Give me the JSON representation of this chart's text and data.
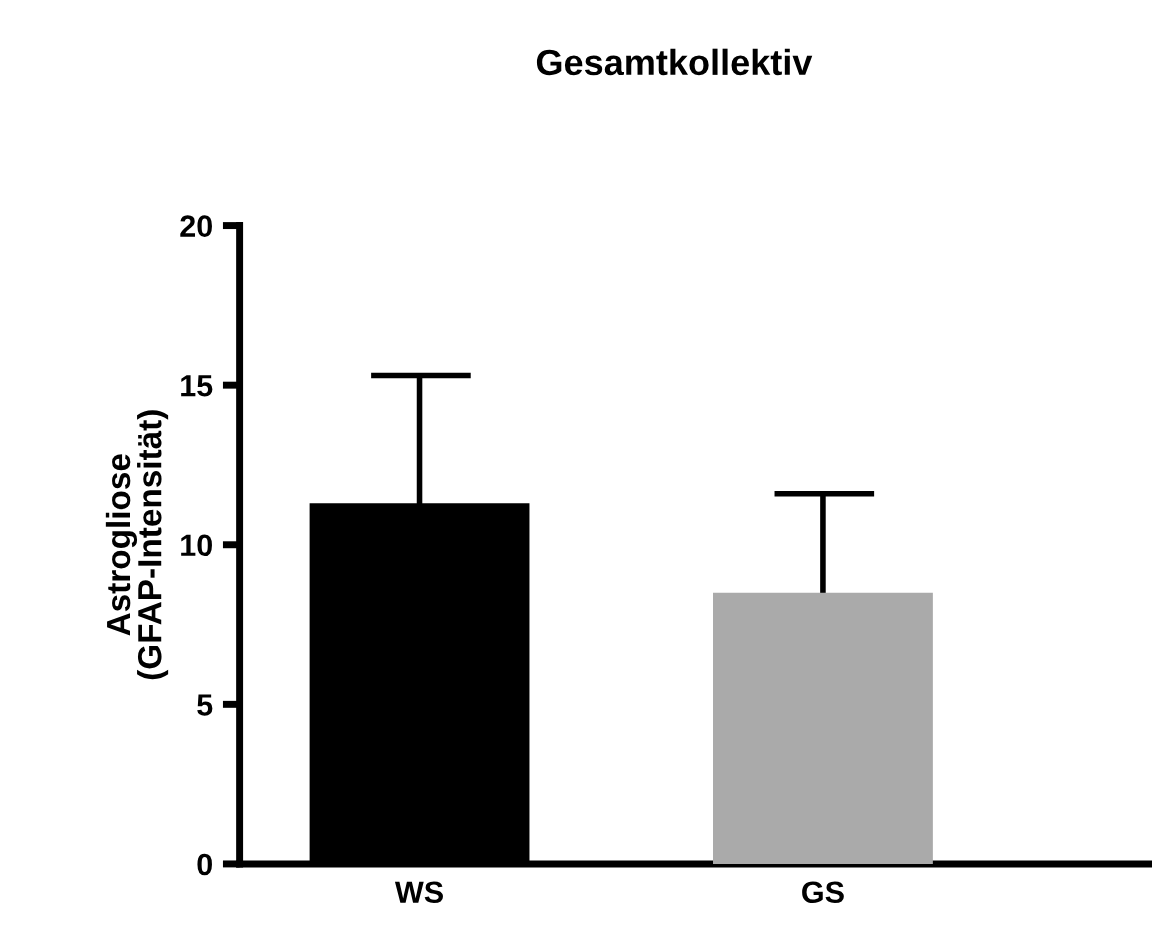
{
  "chart_data": {
    "type": "bar",
    "title": "Gesamtkollektiv",
    "ylabel": "Astrogliose\n(GFAP-Intensität)",
    "categories": [
      "WS",
      "GS"
    ],
    "values": [
      11.3,
      8.5
    ],
    "colors": [
      "#000000",
      "#aaaaaa"
    ],
    "errors": [
      [
        11.3,
        15.3
      ],
      [
        8.5,
        11.6
      ]
    ],
    "ylim": [
      0,
      20
    ],
    "yticks": [
      0,
      5,
      10,
      15,
      20
    ],
    "grid": false,
    "legend": false
  }
}
